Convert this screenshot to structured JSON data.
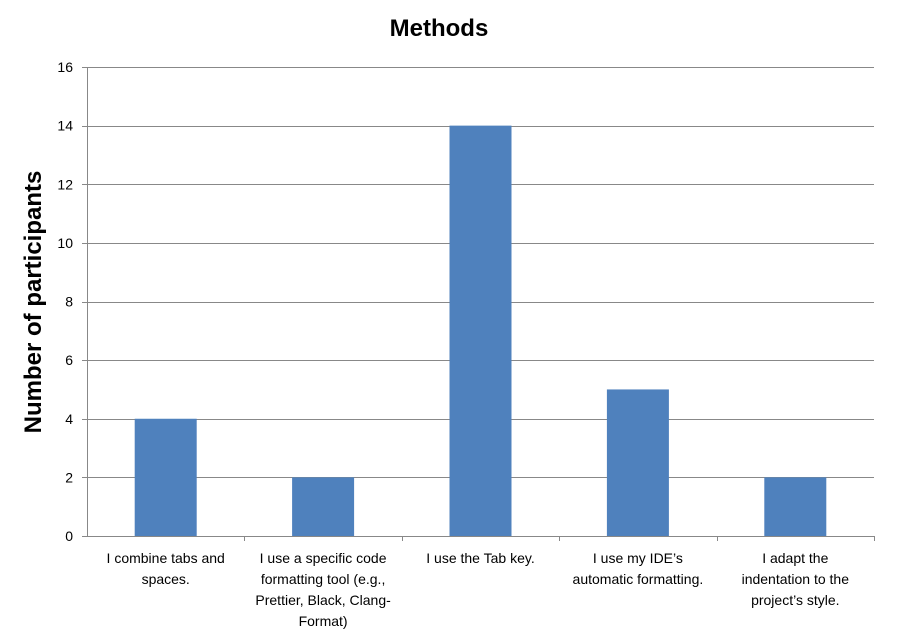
{
  "chart_data": {
    "type": "bar",
    "title": "Methods",
    "xlabel": "",
    "ylabel": "Number of participants",
    "ylim": [
      0,
      16
    ],
    "yticks": [
      0,
      2,
      4,
      6,
      8,
      10,
      12,
      14,
      16
    ],
    "grid": true,
    "legend": "none",
    "bar_color": "#4F81BD",
    "categories": [
      [
        "I combine tabs and",
        "spaces."
      ],
      [
        "I use a specific code",
        "formatting tool (e.g.,",
        "Prettier, Black, Clang-",
        "Format)"
      ],
      [
        "I use the Tab key."
      ],
      [
        "I use my IDE’s",
        "automatic formatting."
      ],
      [
        "I adapt the",
        "indentation to the",
        "project’s style."
      ]
    ],
    "values": [
      4,
      2,
      14,
      5,
      2
    ]
  }
}
